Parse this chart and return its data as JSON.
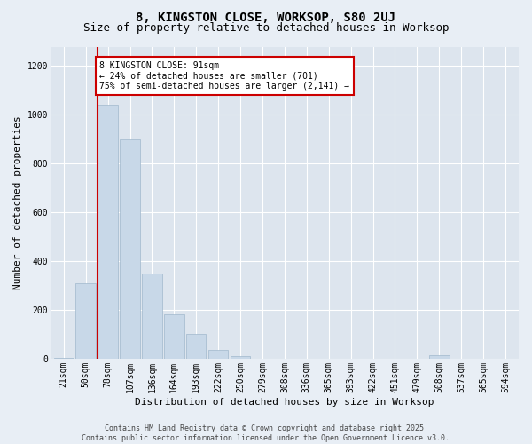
{
  "title_line1": "8, KINGSTON CLOSE, WORKSOP, S80 2UJ",
  "title_line2": "Size of property relative to detached houses in Worksop",
  "xlabel": "Distribution of detached houses by size in Worksop",
  "ylabel": "Number of detached properties",
  "categories": [
    "21sqm",
    "50sqm",
    "78sqm",
    "107sqm",
    "136sqm",
    "164sqm",
    "193sqm",
    "222sqm",
    "250sqm",
    "279sqm",
    "308sqm",
    "336sqm",
    "365sqm",
    "393sqm",
    "422sqm",
    "451sqm",
    "479sqm",
    "508sqm",
    "537sqm",
    "565sqm",
    "594sqm"
  ],
  "values": [
    5,
    310,
    1040,
    900,
    350,
    180,
    100,
    35,
    10,
    0,
    0,
    0,
    0,
    0,
    0,
    0,
    0,
    15,
    0,
    0,
    0
  ],
  "bar_color": "#c8d8e8",
  "bar_edge_color": "#a0b8cc",
  "red_line_index": 2,
  "red_line_color": "#cc0000",
  "annotation_text": "8 KINGSTON CLOSE: 91sqm\n← 24% of detached houses are smaller (701)\n75% of semi-detached houses are larger (2,141) →",
  "annotation_box_color": "#ffffff",
  "annotation_box_edge": "#cc0000",
  "ylim": [
    0,
    1280
  ],
  "yticks": [
    0,
    200,
    400,
    600,
    800,
    1000,
    1200
  ],
  "background_color": "#dde5ee",
  "fig_background_color": "#e8eef5",
  "footer_line1": "Contains HM Land Registry data © Crown copyright and database right 2025.",
  "footer_line2": "Contains public sector information licensed under the Open Government Licence v3.0.",
  "title_fontsize": 10,
  "subtitle_fontsize": 9,
  "axis_label_fontsize": 8,
  "tick_fontsize": 7,
  "annotation_fontsize": 7,
  "footer_fontsize": 6
}
